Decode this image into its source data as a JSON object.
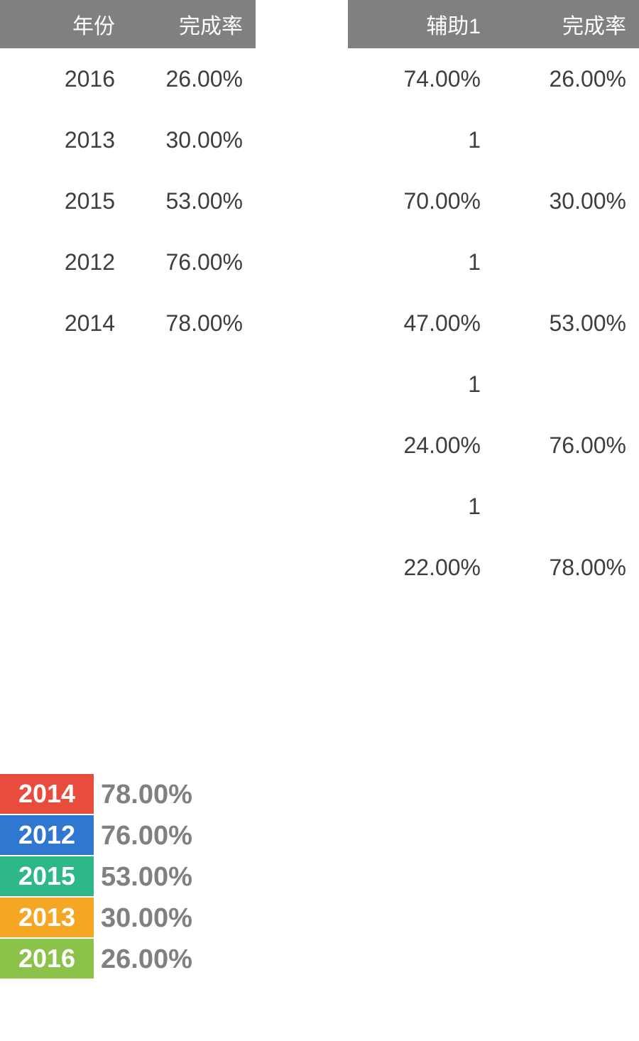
{
  "leftTable": {
    "headers": [
      "年份",
      "完成率"
    ],
    "rows": [
      [
        "2016",
        "26.00%"
      ],
      [
        "2013",
        "30.00%"
      ],
      [
        "2015",
        "53.00%"
      ],
      [
        "2012",
        "76.00%"
      ],
      [
        "2014",
        "78.00%"
      ]
    ]
  },
  "rightTable": {
    "headers": [
      "辅助1",
      "完成率"
    ],
    "rows": [
      [
        "74.00%",
        "26.00%"
      ],
      [
        "1",
        ""
      ],
      [
        "70.00%",
        "30.00%"
      ],
      [
        "1",
        ""
      ],
      [
        "47.00%",
        "53.00%"
      ],
      [
        "1",
        ""
      ],
      [
        "24.00%",
        "76.00%"
      ],
      [
        "1",
        ""
      ],
      [
        "22.00%",
        "78.00%"
      ]
    ]
  },
  "ranked": {
    "items": [
      {
        "year": "2014",
        "value": "78.00%",
        "color": "#e74c3c"
      },
      {
        "year": "2012",
        "value": "76.00%",
        "color": "#2f77d1"
      },
      {
        "year": "2015",
        "value": "53.00%",
        "color": "#2eb88a"
      },
      {
        "year": "2013",
        "value": "30.00%",
        "color": "#f5a623"
      },
      {
        "year": "2016",
        "value": "26.00%",
        "color": "#8bc34a"
      }
    ]
  },
  "styles": {
    "header_bg": "#808080",
    "header_text": "#ffffff",
    "body_text": "#3e3e3e",
    "rank_value_text": "#808080",
    "body_bg": "#ffffff",
    "header_fontsize": 30,
    "data_fontsize": 32,
    "chip_fontsize": 36,
    "rank_fontsize": 38
  }
}
